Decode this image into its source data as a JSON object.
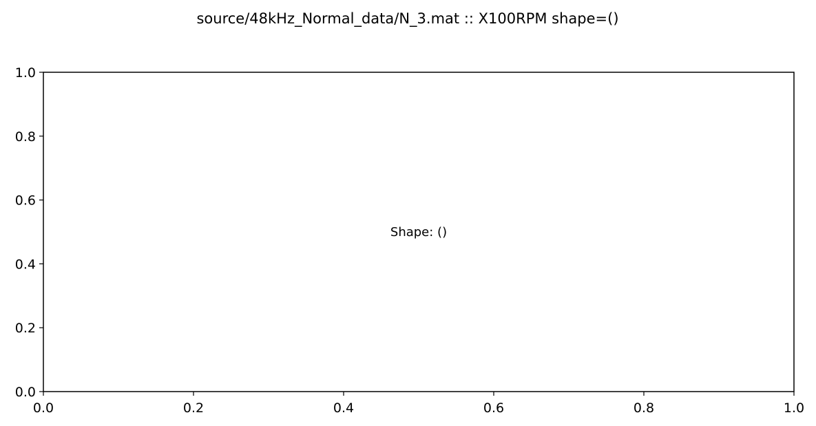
{
  "chart_data": {
    "type": "scatter",
    "title": "source/48kHz_Normal_data/N_3.mat :: X100RPM  shape=()",
    "xlabel": "",
    "ylabel": "",
    "xlim": [
      0.0,
      1.0
    ],
    "ylim": [
      0.0,
      1.0
    ],
    "x_ticks": [
      "0.0",
      "0.2",
      "0.4",
      "0.6",
      "0.8",
      "1.0"
    ],
    "y_ticks": [
      "0.0",
      "0.2",
      "0.4",
      "0.6",
      "0.8",
      "1.0"
    ],
    "grid": false,
    "series": [],
    "annotations": [
      {
        "text": "Shape: ()",
        "x": 0.5,
        "y": 0.5
      }
    ]
  },
  "colors": {
    "background": "#ffffff",
    "axes": "#000000"
  }
}
